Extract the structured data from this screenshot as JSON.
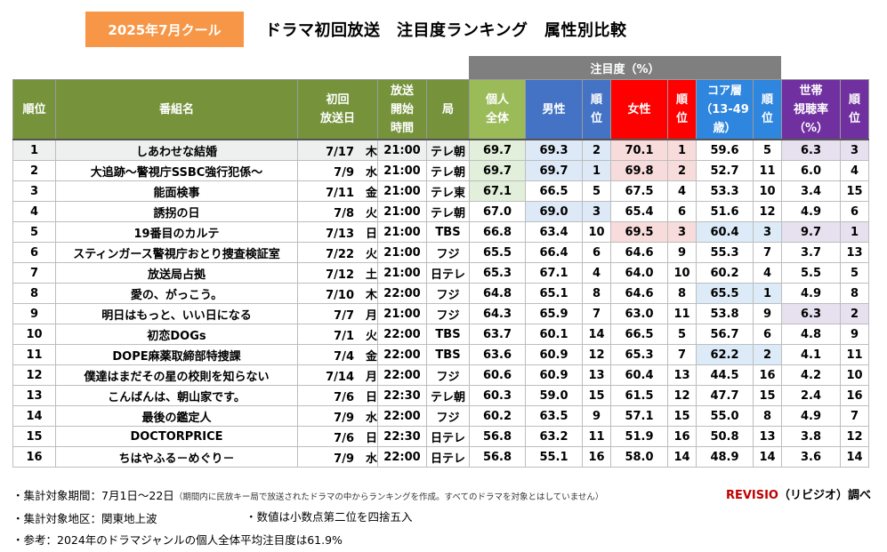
{
  "season_badge": "2025年7月クール",
  "page_title": "ドラマ初回放送　注目度ランキング　属性別比較",
  "attention_group_label": "注目度（%）",
  "headers": {
    "rank": "順位",
    "program": "番組名",
    "first_air": "初回\n放送日",
    "air_time": "放送\n開始\n時間",
    "station": "局",
    "individual": "個人\n全体",
    "male": "男性",
    "male_rank": "順\n位",
    "female": "女性",
    "female_rank": "順\n位",
    "core": "コア層\n（13-49\n歳）",
    "core_rank": "順\n位",
    "household": "世帯\n視聴率\n（%）",
    "household_rank": "順\n位"
  },
  "rows": [
    {
      "rank": "1",
      "title": "しあわせな結婚",
      "date": "7/17",
      "day": "木",
      "time": "21:00",
      "station": "テレ朝",
      "ind": "69.7",
      "male": "69.3",
      "mr": "2",
      "female": "70.1",
      "fr": "1",
      "core": "59.6",
      "cr": "5",
      "hh": "6.3",
      "hr": "3"
    },
    {
      "rank": "2",
      "title": "大追跡～警視庁SSBC強行犯係～",
      "date": "7/9",
      "day": "水",
      "time": "21:00",
      "station": "テレ朝",
      "ind": "69.7",
      "male": "69.7",
      "mr": "1",
      "female": "69.8",
      "fr": "2",
      "core": "52.7",
      "cr": "11",
      "hh": "6.0",
      "hr": "4"
    },
    {
      "rank": "3",
      "title": "能面検事",
      "date": "7/11",
      "day": "金",
      "time": "21:00",
      "station": "テレ東",
      "ind": "67.1",
      "male": "66.5",
      "mr": "5",
      "female": "67.5",
      "fr": "4",
      "core": "53.3",
      "cr": "10",
      "hh": "3.4",
      "hr": "15"
    },
    {
      "rank": "4",
      "title": "誘拐の日",
      "date": "7/8",
      "day": "火",
      "time": "21:00",
      "station": "テレ朝",
      "ind": "67.0",
      "male": "69.0",
      "mr": "3",
      "female": "65.4",
      "fr": "6",
      "core": "51.6",
      "cr": "12",
      "hh": "4.9",
      "hr": "6"
    },
    {
      "rank": "5",
      "title": "19番目のカルテ",
      "date": "7/13",
      "day": "日",
      "time": "21:00",
      "station": "TBS",
      "ind": "66.8",
      "male": "63.4",
      "mr": "10",
      "female": "69.5",
      "fr": "3",
      "core": "60.4",
      "cr": "3",
      "hh": "9.7",
      "hr": "1"
    },
    {
      "rank": "6",
      "title": "スティンガース警視庁おとり捜査検証室",
      "date": "7/22",
      "day": "火",
      "time": "21:00",
      "station": "フジ",
      "ind": "65.5",
      "male": "66.4",
      "mr": "6",
      "female": "64.6",
      "fr": "9",
      "core": "55.3",
      "cr": "7",
      "hh": "3.7",
      "hr": "13"
    },
    {
      "rank": "7",
      "title": "放送局占拠",
      "date": "7/12",
      "day": "土",
      "time": "21:00",
      "station": "日テレ",
      "ind": "65.3",
      "male": "67.1",
      "mr": "4",
      "female": "64.0",
      "fr": "10",
      "core": "60.2",
      "cr": "4",
      "hh": "5.5",
      "hr": "5"
    },
    {
      "rank": "8",
      "title": "愛の、がっこう。",
      "date": "7/10",
      "day": "木",
      "time": "22:00",
      "station": "フジ",
      "ind": "64.8",
      "male": "65.1",
      "mr": "8",
      "female": "64.6",
      "fr": "8",
      "core": "65.5",
      "cr": "1",
      "hh": "4.9",
      "hr": "8"
    },
    {
      "rank": "9",
      "title": "明日はもっと、いい日になる",
      "date": "7/7",
      "day": "月",
      "time": "21:00",
      "station": "フジ",
      "ind": "64.3",
      "male": "65.9",
      "mr": "7",
      "female": "63.0",
      "fr": "11",
      "core": "53.8",
      "cr": "9",
      "hh": "6.3",
      "hr": "2"
    },
    {
      "rank": "10",
      "title": "初恋DOGs",
      "date": "7/1",
      "day": "火",
      "time": "22:00",
      "station": "TBS",
      "ind": "63.7",
      "male": "60.1",
      "mr": "14",
      "female": "66.5",
      "fr": "5",
      "core": "56.7",
      "cr": "6",
      "hh": "4.8",
      "hr": "9"
    },
    {
      "rank": "11",
      "title": "DOPE麻薬取締部特捜課",
      "date": "7/4",
      "day": "金",
      "time": "22:00",
      "station": "TBS",
      "ind": "63.6",
      "male": "60.9",
      "mr": "12",
      "female": "65.3",
      "fr": "7",
      "core": "62.2",
      "cr": "2",
      "hh": "4.1",
      "hr": "11"
    },
    {
      "rank": "12",
      "title": "僕達はまだその星の校則を知らない",
      "date": "7/14",
      "day": "月",
      "time": "22:00",
      "station": "フジ",
      "ind": "60.6",
      "male": "60.9",
      "mr": "13",
      "female": "60.4",
      "fr": "13",
      "core": "44.5",
      "cr": "16",
      "hh": "4.2",
      "hr": "10"
    },
    {
      "rank": "13",
      "title": "こんばんは、朝山家です。",
      "date": "7/6",
      "day": "日",
      "time": "22:30",
      "station": "テレ朝",
      "ind": "60.3",
      "male": "59.0",
      "mr": "15",
      "female": "61.5",
      "fr": "12",
      "core": "47.7",
      "cr": "15",
      "hh": "2.4",
      "hr": "16"
    },
    {
      "rank": "14",
      "title": "最後の鑑定人",
      "date": "7/9",
      "day": "水",
      "time": "22:00",
      "station": "フジ",
      "ind": "60.2",
      "male": "63.5",
      "mr": "9",
      "female": "57.1",
      "fr": "15",
      "core": "55.0",
      "cr": "8",
      "hh": "4.9",
      "hr": "7"
    },
    {
      "rank": "15",
      "title": "DOCTORPRICE",
      "date": "7/6",
      "day": "日",
      "time": "22:30",
      "station": "日テレ",
      "ind": "56.8",
      "male": "63.2",
      "mr": "11",
      "female": "51.9",
      "fr": "16",
      "core": "50.8",
      "cr": "13",
      "hh": "3.8",
      "hr": "12"
    },
    {
      "rank": "16",
      "title": "ちはやふる－めぐり－",
      "date": "7/9",
      "day": "水",
      "time": "22:00",
      "station": "日テレ",
      "ind": "56.8",
      "male": "55.1",
      "mr": "16",
      "female": "58.0",
      "fr": "14",
      "core": "48.9",
      "cr": "14",
      "hh": "3.6",
      "hr": "14"
    }
  ],
  "highlight_colors": {
    "individual": "#e2efda",
    "male": "#dde9f7",
    "female": "#f8dcdc",
    "core": "#dcebf7",
    "household": "#e6e0ef",
    "rank1_row": "#eef0f0"
  },
  "notes": {
    "period": "・集計対象期間：7月1日～22日",
    "period_detail": "（期間内に民放キー局で放送されたドラマの中からランキングを作成。すべてのドラマを対象とはしていません）",
    "region": "・集計対象地区：関東地上波",
    "rounding": "・数値は小数点第二位を四捨五入",
    "reference": "・参考：2024年のドラマジャンルの個人全体平均注目度は61.9%"
  },
  "credit": {
    "brand": "REVISIO",
    "suffix": "（リビジオ）調べ"
  }
}
